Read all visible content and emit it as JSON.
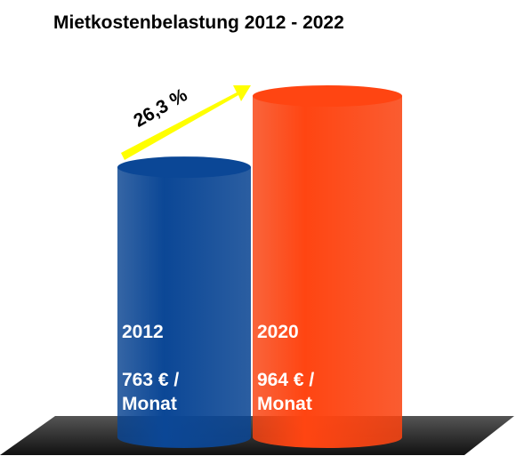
{
  "chart_data": {
    "type": "cylinder",
    "title": "Mietkostenbelastung 2012 - 2022",
    "categories": [
      "2012",
      "2020"
    ],
    "values": [
      763,
      964
    ],
    "value_labels": [
      "763 € / Monat",
      "964 € / Monat"
    ],
    "colors": [
      "#0b4796",
      "#ff4512"
    ],
    "annotation": "26,3 %"
  }
}
